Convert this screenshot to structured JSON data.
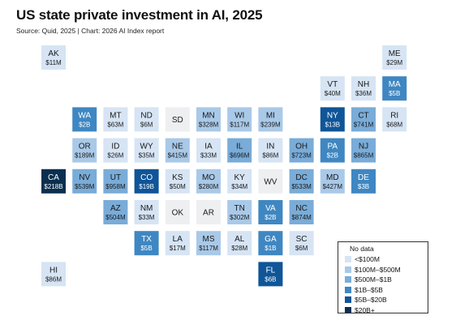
{
  "title": "US state private investment in AI, 2025",
  "subtitle": "Source: Quid, 2025 | Chart: 2026 AI Index report",
  "legend": {
    "bins": [
      {
        "label": "No data",
        "bin": "nodata",
        "color": null
      },
      {
        "label": "<$100M",
        "bin": "b1",
        "color": "#d6e4f4"
      },
      {
        "label": "$100M–$500M",
        "bin": "b2",
        "color": "#a9c9e8"
      },
      {
        "label": "$500M–$1B",
        "bin": "b3",
        "color": "#79acd8"
      },
      {
        "label": "$1B–$5B",
        "bin": "b4",
        "color": "#3f87c2"
      },
      {
        "label": "$5B–$20B",
        "bin": "b5",
        "color": "#0f5598"
      },
      {
        "label": "$20B+",
        "bin": "b6",
        "color": "#0b2f4f"
      }
    ]
  },
  "chart_data": {
    "type": "tilemap",
    "title": "US state private investment in AI, 2025",
    "nodata_color": "#eeeff1",
    "states": [
      {
        "code": "AK",
        "value": "$11M",
        "bin": "b1",
        "col": 0,
        "row": 0
      },
      {
        "code": "ME",
        "value": "$29M",
        "bin": "b1",
        "col": 11,
        "row": 0
      },
      {
        "code": "VT",
        "value": "$40M",
        "bin": "b1",
        "col": 9,
        "row": 1
      },
      {
        "code": "NH",
        "value": "$36M",
        "bin": "b1",
        "col": 10,
        "row": 1
      },
      {
        "code": "MA",
        "value": "$5B",
        "bin": "b4",
        "col": 11,
        "row": 1
      },
      {
        "code": "WA",
        "value": "$2B",
        "bin": "b4",
        "col": 1,
        "row": 2
      },
      {
        "code": "MT",
        "value": "$63M",
        "bin": "b1",
        "col": 2,
        "row": 2
      },
      {
        "code": "ND",
        "value": "$6M",
        "bin": "b1",
        "col": 3,
        "row": 2
      },
      {
        "code": "SD",
        "value": "",
        "bin": "nodata",
        "col": 4,
        "row": 2
      },
      {
        "code": "MN",
        "value": "$328M",
        "bin": "b2",
        "col": 5,
        "row": 2
      },
      {
        "code": "WI",
        "value": "$117M",
        "bin": "b2",
        "col": 6,
        "row": 2
      },
      {
        "code": "MI",
        "value": "$239M",
        "bin": "b2",
        "col": 7,
        "row": 2
      },
      {
        "code": "NY",
        "value": "$13B",
        "bin": "b5",
        "col": 9,
        "row": 2
      },
      {
        "code": "CT",
        "value": "$741M",
        "bin": "b3",
        "col": 10,
        "row": 2
      },
      {
        "code": "RI",
        "value": "$68M",
        "bin": "b1",
        "col": 11,
        "row": 2
      },
      {
        "code": "OR",
        "value": "$189M",
        "bin": "b2",
        "col": 1,
        "row": 3
      },
      {
        "code": "ID",
        "value": "$26M",
        "bin": "b1",
        "col": 2,
        "row": 3
      },
      {
        "code": "WY",
        "value": "$35M",
        "bin": "b1",
        "col": 3,
        "row": 3
      },
      {
        "code": "NE",
        "value": "$415M",
        "bin": "b2",
        "col": 4,
        "row": 3
      },
      {
        "code": "IA",
        "value": "$33M",
        "bin": "b1",
        "col": 5,
        "row": 3
      },
      {
        "code": "IL",
        "value": "$696M",
        "bin": "b3",
        "col": 6,
        "row": 3
      },
      {
        "code": "IN",
        "value": "$86M",
        "bin": "b1",
        "col": 7,
        "row": 3
      },
      {
        "code": "OH",
        "value": "$723M",
        "bin": "b3",
        "col": 8,
        "row": 3
      },
      {
        "code": "PA",
        "value": "$2B",
        "bin": "b4",
        "col": 9,
        "row": 3
      },
      {
        "code": "NJ",
        "value": "$865M",
        "bin": "b3",
        "col": 10,
        "row": 3
      },
      {
        "code": "CA",
        "value": "$218B",
        "bin": "b6",
        "col": 0,
        "row": 4
      },
      {
        "code": "NV",
        "value": "$539M",
        "bin": "b3",
        "col": 1,
        "row": 4
      },
      {
        "code": "UT",
        "value": "$958M",
        "bin": "b3",
        "col": 2,
        "row": 4
      },
      {
        "code": "CO",
        "value": "$19B",
        "bin": "b5",
        "col": 3,
        "row": 4
      },
      {
        "code": "KS",
        "value": "$50M",
        "bin": "b1",
        "col": 4,
        "row": 4
      },
      {
        "code": "MO",
        "value": "$280M",
        "bin": "b2",
        "col": 5,
        "row": 4
      },
      {
        "code": "KY",
        "value": "$34M",
        "bin": "b1",
        "col": 6,
        "row": 4
      },
      {
        "code": "WV",
        "value": "",
        "bin": "nodata",
        "col": 7,
        "row": 4
      },
      {
        "code": "DC",
        "value": "$533M",
        "bin": "b3",
        "col": 8,
        "row": 4
      },
      {
        "code": "MD",
        "value": "$427M",
        "bin": "b2",
        "col": 9,
        "row": 4
      },
      {
        "code": "DE",
        "value": "$3B",
        "bin": "b4",
        "col": 10,
        "row": 4
      },
      {
        "code": "AZ",
        "value": "$504M",
        "bin": "b3",
        "col": 2,
        "row": 5
      },
      {
        "code": "NM",
        "value": "$33M",
        "bin": "b1",
        "col": 3,
        "row": 5
      },
      {
        "code": "OK",
        "value": "",
        "bin": "nodata",
        "col": 4,
        "row": 5
      },
      {
        "code": "AR",
        "value": "",
        "bin": "nodata",
        "col": 5,
        "row": 5
      },
      {
        "code": "TN",
        "value": "$302M",
        "bin": "b2",
        "col": 6,
        "row": 5
      },
      {
        "code": "VA",
        "value": "$2B",
        "bin": "b4",
        "col": 7,
        "row": 5
      },
      {
        "code": "NC",
        "value": "$874M",
        "bin": "b3",
        "col": 8,
        "row": 5
      },
      {
        "code": "TX",
        "value": "$5B",
        "bin": "b4",
        "col": 3,
        "row": 6
      },
      {
        "code": "LA",
        "value": "$17M",
        "bin": "b1",
        "col": 4,
        "row": 6
      },
      {
        "code": "MS",
        "value": "$117M",
        "bin": "b2",
        "col": 5,
        "row": 6
      },
      {
        "code": "AL",
        "value": "$28M",
        "bin": "b1",
        "col": 6,
        "row": 6
      },
      {
        "code": "GA",
        "value": "$1B",
        "bin": "b4",
        "col": 7,
        "row": 6
      },
      {
        "code": "SC",
        "value": "$6M",
        "bin": "b1",
        "col": 8,
        "row": 6
      },
      {
        "code": "HI",
        "value": "$86M",
        "bin": "b1",
        "col": 0,
        "row": 7
      },
      {
        "code": "FL",
        "value": "$6B",
        "bin": "b5",
        "col": 7,
        "row": 7
      }
    ]
  }
}
